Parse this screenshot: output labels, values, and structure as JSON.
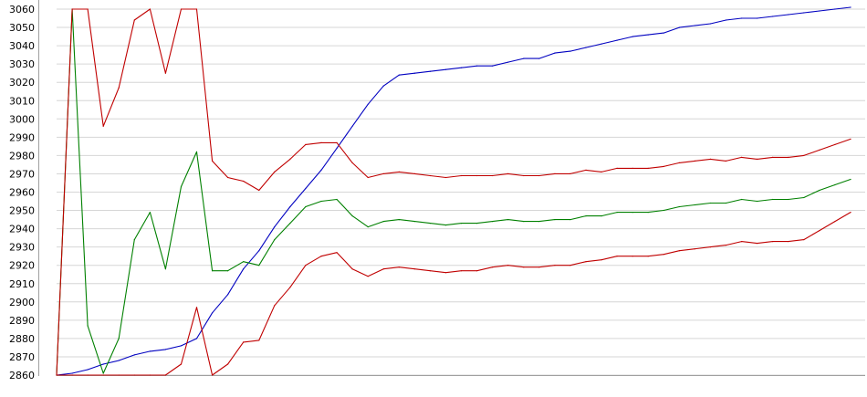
{
  "chart_data": {
    "type": "line",
    "title": "",
    "xlabel": "",
    "ylabel": "",
    "ylim": [
      2860,
      3060
    ],
    "xlim": [
      0,
      51
    ],
    "yticks": [
      2860,
      2870,
      2880,
      2890,
      2900,
      2910,
      2920,
      2930,
      2940,
      2950,
      2960,
      2970,
      2980,
      2990,
      3000,
      3010,
      3020,
      3030,
      3040,
      3050,
      3060
    ],
    "grid": true,
    "series": [
      {
        "color": "#0000c0",
        "x": [
          0,
          1,
          2,
          3,
          4,
          5,
          6,
          7,
          8,
          9,
          10,
          11,
          12,
          13,
          14,
          15,
          16,
          17,
          18,
          19,
          20,
          21,
          22,
          23,
          24,
          25,
          26,
          27,
          28,
          29,
          30,
          31,
          32,
          33,
          34,
          35,
          36,
          37,
          38,
          39,
          40,
          41,
          42,
          43,
          44,
          45,
          46,
          47,
          48,
          49,
          50,
          51
        ],
        "values": [
          2860,
          2861,
          2863,
          2866,
          2868,
          2871,
          2873,
          2874,
          2876,
          2880,
          2894,
          2904,
          2918,
          2928,
          2941,
          2952,
          2962,
          2972,
          2984,
          2996,
          3008,
          3018,
          3024,
          3025,
          3026,
          3027,
          3028,
          3029,
          3029,
          3031,
          3033,
          3033,
          3036,
          3037,
          3039,
          3041,
          3043,
          3045,
          3046,
          3047,
          3050,
          3051,
          3052,
          3054,
          3055,
          3055,
          3056,
          3057,
          3058,
          3059,
          3060,
          3061
        ]
      },
      {
        "color": "#008000",
        "x": [
          0,
          1,
          2,
          3,
          4,
          5,
          6,
          7,
          8,
          9,
          10,
          11,
          12,
          13,
          14,
          15,
          16,
          17,
          18,
          19,
          20,
          21,
          22,
          23,
          24,
          25,
          26,
          27,
          28,
          29,
          30,
          31,
          32,
          33,
          34,
          35,
          36,
          37,
          38,
          39,
          40,
          41,
          42,
          43,
          44,
          45,
          46,
          47,
          48,
          49,
          50,
          51
        ],
        "values": [
          2860,
          3060,
          2887,
          2861,
          2880,
          2934,
          2949,
          2918,
          2963,
          2982,
          2917,
          2917,
          2922,
          2920,
          2934,
          2943,
          2952,
          2955,
          2956,
          2947,
          2941,
          2944,
          2945,
          2944,
          2943,
          2942,
          2943,
          2943,
          2944,
          2945,
          2944,
          2944,
          2945,
          2945,
          2947,
          2947,
          2949,
          2949,
          2949,
          2950,
          2952,
          2953,
          2954,
          2954,
          2956,
          2955,
          2956,
          2956,
          2957,
          2961,
          2964,
          2967
        ]
      },
      {
        "color": "#c00000",
        "x": [
          0,
          1,
          2,
          3,
          4,
          5,
          6,
          7,
          8,
          9,
          10,
          11,
          12,
          13,
          14,
          15,
          16,
          17,
          18,
          19,
          20,
          21,
          22,
          23,
          24,
          25,
          26,
          27,
          28,
          29,
          30,
          31,
          32,
          33,
          34,
          35,
          36,
          37,
          38,
          39,
          40,
          41,
          42,
          43,
          44,
          45,
          46,
          47,
          48,
          49,
          50,
          51
        ],
        "values": [
          2860,
          3060,
          3060,
          2996,
          3017,
          3054,
          3060,
          3025,
          3060,
          3060,
          2977,
          2968,
          2966,
          2961,
          2971,
          2978,
          2986,
          2987,
          2987,
          2976,
          2968,
          2970,
          2971,
          2970,
          2969,
          2968,
          2969,
          2969,
          2969,
          2970,
          2969,
          2969,
          2970,
          2970,
          2972,
          2971,
          2973,
          2973,
          2973,
          2974,
          2976,
          2977,
          2978,
          2977,
          2979,
          2978,
          2979,
          2979,
          2980,
          2983,
          2986,
          2989
        ]
      },
      {
        "color": "#c00000",
        "x": [
          0,
          1,
          2,
          3,
          4,
          5,
          6,
          7,
          8,
          9,
          10,
          11,
          12,
          13,
          14,
          15,
          16,
          17,
          18,
          19,
          20,
          21,
          22,
          23,
          24,
          25,
          26,
          27,
          28,
          29,
          30,
          31,
          32,
          33,
          34,
          35,
          36,
          37,
          38,
          39,
          40,
          41,
          42,
          43,
          44,
          45,
          46,
          47,
          48,
          49,
          50,
          51
        ],
        "values": [
          2860,
          2860,
          2860,
          2860,
          2860,
          2860,
          2860,
          2860,
          2866,
          2897,
          2860,
          2866,
          2878,
          2879,
          2898,
          2908,
          2920,
          2925,
          2927,
          2918,
          2914,
          2918,
          2919,
          2918,
          2917,
          2916,
          2917,
          2917,
          2919,
          2920,
          2919,
          2919,
          2920,
          2920,
          2922,
          2923,
          2925,
          2925,
          2925,
          2926,
          2928,
          2929,
          2930,
          2931,
          2933,
          2932,
          2933,
          2933,
          2934,
          2939,
          2944,
          2949
        ]
      }
    ]
  }
}
